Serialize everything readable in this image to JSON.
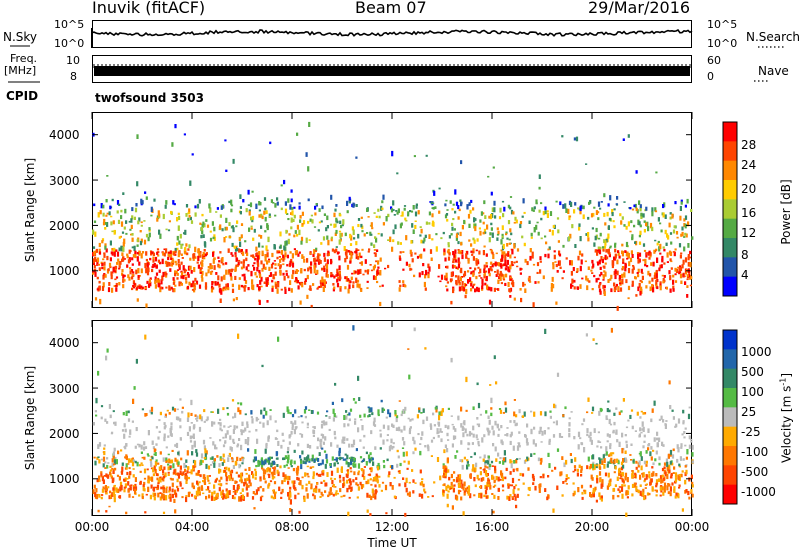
{
  "header": {
    "station": "Inuvik (fitACF)",
    "beam": "Beam 07",
    "date": "29/Mar/2016"
  },
  "top_panels": {
    "nsky_label": "N.Sky",
    "nsearch_label": "N.Search",
    "nsky_ticks": [
      "10^5",
      "10^0"
    ],
    "nsearch_ticks": [
      "10^5",
      "10^0"
    ],
    "freq_label_1": "Freq.",
    "freq_label_2": "[MHz]",
    "freq_ticks": [
      "10",
      "8"
    ],
    "nave_label": "Nave",
    "nave_ticks": [
      "60",
      "0"
    ],
    "cpid_label": "CPID",
    "cpid_value": "twofsound 3503"
  },
  "x_axis": {
    "label": "Time UT",
    "ticks": [
      "00:00",
      "04:00",
      "08:00",
      "12:00",
      "16:00",
      "20:00",
      "00:00"
    ]
  },
  "chart_data": [
    {
      "type": "heatmap",
      "name": "power",
      "ylabel": "Slant Range [km]",
      "yticks": [
        "4000",
        "3000",
        "2000",
        "1000"
      ],
      "ylim": [
        180,
        4500
      ],
      "xlim": [
        0,
        24
      ],
      "colorbar": {
        "label": "Power [dB]",
        "ticks": [
          "28",
          "24",
          "20",
          "16",
          "12",
          "8",
          "4"
        ],
        "colors": [
          "#ff0000",
          "#ff4400",
          "#ff8800",
          "#ffcc00",
          "#aacc33",
          "#55aa44",
          "#338866",
          "#2255aa",
          "#0000ff"
        ]
      }
    },
    {
      "type": "heatmap",
      "name": "velocity",
      "ylabel": "Slant Range [km]",
      "yticks": [
        "4000",
        "3000",
        "2000",
        "1000"
      ],
      "ylim": [
        180,
        4500
      ],
      "xlim": [
        0,
        24
      ],
      "colorbar": {
        "label": "Velocity",
        "label_unit": "[m s",
        "label_exp": "-1",
        "label_close": "]",
        "ticks": [
          "1000",
          "500",
          "100",
          "25",
          "-25",
          "-100",
          "-500",
          "-1000"
        ],
        "colors": [
          "#0033cc",
          "#2266aa",
          "#338866",
          "#55bb44",
          "#bbbbbb",
          "#ffaa00",
          "#ff7700",
          "#ff4400",
          "#ff0000"
        ]
      }
    }
  ]
}
